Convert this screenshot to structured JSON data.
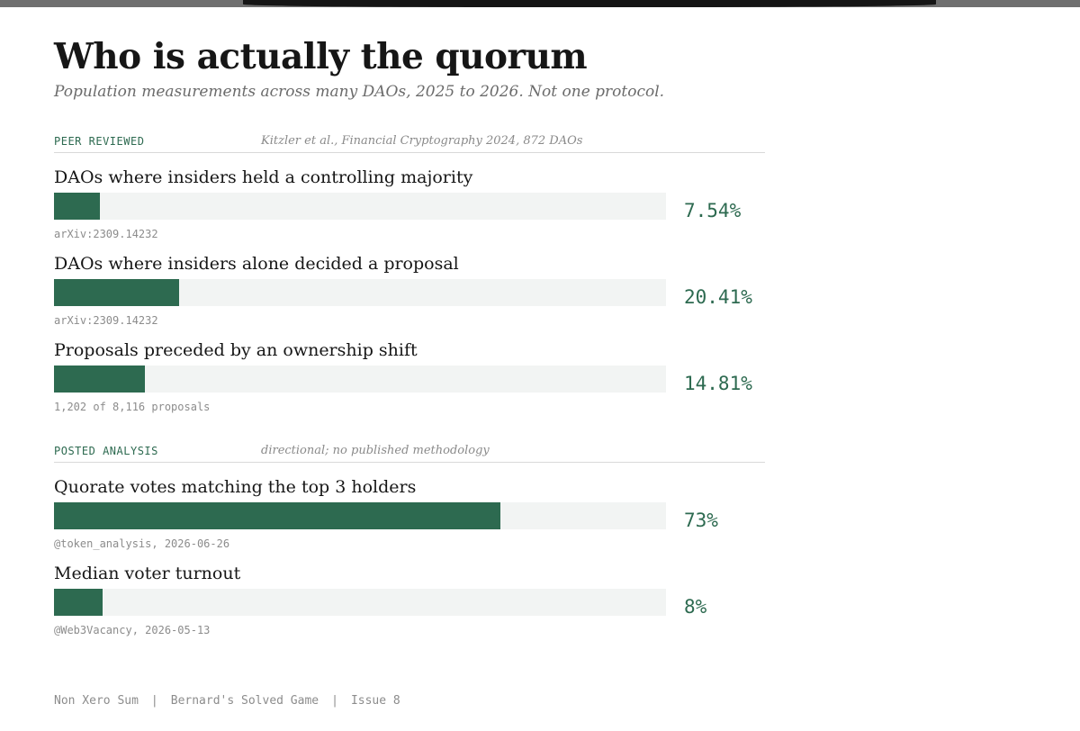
{
  "header": {
    "title": "Who is actually the quorum",
    "subtitle": "Population measurements across many DAOs, 2025 to 2026. Not one protocol."
  },
  "colors": {
    "bar": "#2d6a50",
    "track": "#f2f4f3",
    "accent_text": "#2d6a50"
  },
  "chart_data": {
    "type": "bar",
    "orientation": "horizontal",
    "xlim": [
      0,
      100
    ],
    "unit": "%",
    "sections": [
      {
        "label": "PEER REVIEWED",
        "source": "Kitzler et al., Financial Cryptography 2024, 872 DAOs",
        "items": [
          {
            "label": "DAOs where insiders held a controlling majority",
            "value": 7.54,
            "display": "7.54%",
            "source": "arXiv:2309.14232"
          },
          {
            "label": "DAOs where insiders alone decided a proposal",
            "value": 20.41,
            "display": "20.41%",
            "source": "arXiv:2309.14232"
          },
          {
            "label": "Proposals preceded by an ownership shift",
            "value": 14.81,
            "display": "14.81%",
            "source": "1,202 of 8,116 proposals"
          }
        ]
      },
      {
        "label": "POSTED ANALYSIS",
        "source": "directional; no published methodology",
        "items": [
          {
            "label": "Quorate votes matching the top 3 holders",
            "value": 73,
            "display": "73%",
            "source": "@token_analysis, 2026-06-26"
          },
          {
            "label": "Median voter turnout",
            "value": 8,
            "display": "8%",
            "source": "@Web3Vacancy, 2026-05-13"
          }
        ]
      }
    ]
  },
  "footer": {
    "publication": "Non Xero Sum",
    "series": "Bernard's Solved Game",
    "issue": "Issue 8",
    "separator": "|"
  }
}
